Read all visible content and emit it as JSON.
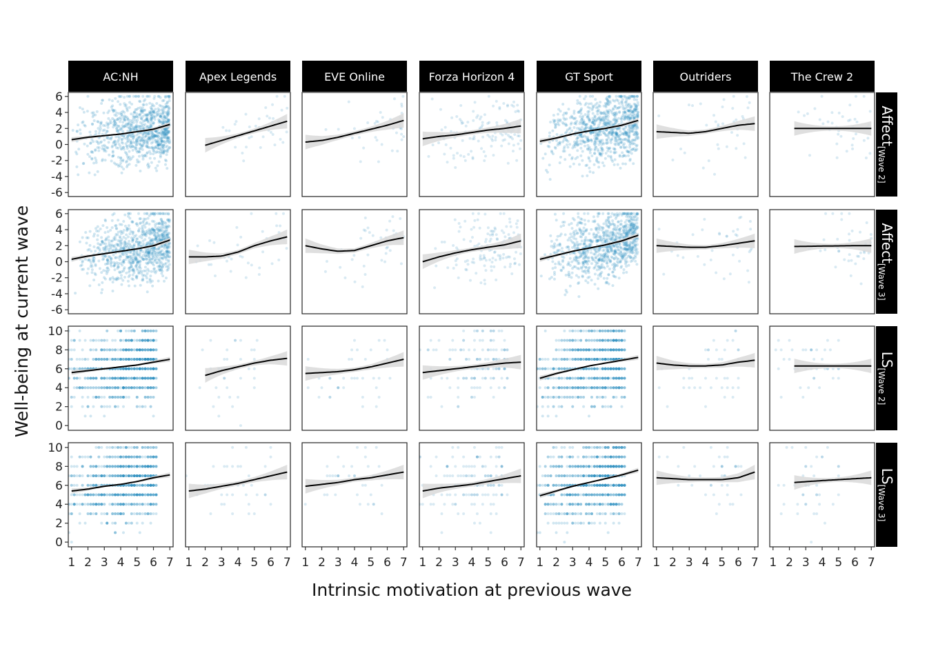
{
  "chart_data": {
    "type": "scatter",
    "xlabel": "Intrinsic motivation at previous wave",
    "ylabel": "Well-being at current wave",
    "columns": [
      "AC:NH",
      "Apex Legends",
      "EVE Online",
      "Forza Horizon 4",
      "GT Sport",
      "Outriders",
      "The Crew 2"
    ],
    "rows": [
      {
        "main": "Affect",
        "sub": "[Wave 2]",
        "ylim": [
          -6.5,
          6.5
        ],
        "yticks": [
          -6,
          -4,
          -2,
          0,
          2,
          4,
          6
        ],
        "discrete": false
      },
      {
        "main": "Affect",
        "sub": "[Wave 3]",
        "ylim": [
          -6.5,
          6.5
        ],
        "yticks": [
          -6,
          -4,
          -2,
          0,
          2,
          4,
          6
        ],
        "discrete": false
      },
      {
        "main": "LS",
        "sub": "[Wave 2]",
        "ylim": [
          -0.5,
          10.5
        ],
        "yticks": [
          0,
          2,
          4,
          6,
          8,
          10
        ],
        "discrete": true
      },
      {
        "main": "LS",
        "sub": "[Wave 3]",
        "ylim": [
          -0.5,
          10.5
        ],
        "yticks": [
          0,
          2,
          4,
          6,
          8,
          10
        ],
        "discrete": true
      }
    ],
    "xlim": [
      0.8,
      7.2
    ],
    "xticks": [
      1,
      2,
      3,
      4,
      5,
      6,
      7
    ],
    "point_color": "#2b8cbe",
    "line_color": "#000000",
    "ribbon_color": "#d9d9d9",
    "strip_color": "#000000",
    "panels": [
      [
        {
          "density": 5,
          "xmin": 1,
          "trend": [
            [
              1,
              0.6
            ],
            [
              2,
              0.9
            ],
            [
              3,
              1.1
            ],
            [
              4,
              1.3
            ],
            [
              5,
              1.6
            ],
            [
              6,
              1.9
            ],
            [
              7,
              2.5
            ]
          ]
        },
        {
          "density": 1,
          "xmin": 2,
          "trend": [
            [
              2,
              -0.1
            ],
            [
              3,
              0.5
            ],
            [
              4,
              1.1
            ],
            [
              5,
              1.7
            ],
            [
              6,
              2.3
            ],
            [
              7,
              2.9
            ]
          ]
        },
        {
          "density": 1,
          "xmin": 1,
          "trend": [
            [
              1,
              0.3
            ],
            [
              2,
              0.5
            ],
            [
              3,
              0.9
            ],
            [
              4,
              1.4
            ],
            [
              5,
              1.9
            ],
            [
              6,
              2.4
            ],
            [
              7,
              3.0
            ]
          ]
        },
        {
          "density": 2,
          "xmin": 1,
          "trend": [
            [
              1,
              0.7
            ],
            [
              2,
              1.0
            ],
            [
              3,
              1.2
            ],
            [
              4,
              1.5
            ],
            [
              5,
              1.8
            ],
            [
              6,
              2.0
            ],
            [
              7,
              2.3
            ]
          ]
        },
        {
          "density": 5,
          "xmin": 1,
          "trend": [
            [
              1,
              0.4
            ],
            [
              2,
              0.8
            ],
            [
              3,
              1.3
            ],
            [
              4,
              1.7
            ],
            [
              5,
              2.0
            ],
            [
              6,
              2.4
            ],
            [
              7,
              3.0
            ]
          ]
        },
        {
          "density": 1,
          "xmin": 1,
          "trend": [
            [
              1,
              1.6
            ],
            [
              2,
              1.5
            ],
            [
              3,
              1.4
            ],
            [
              4,
              1.6
            ],
            [
              5,
              2.0
            ],
            [
              6,
              2.4
            ],
            [
              7,
              2.6
            ]
          ]
        },
        {
          "density": 1,
          "xmin": 2.3,
          "trend": [
            [
              2.3,
              2.0
            ],
            [
              4,
              2.0
            ],
            [
              6,
              2.0
            ],
            [
              7,
              2.0
            ]
          ]
        }
      ],
      [
        {
          "density": 5,
          "xmin": 1,
          "trend": [
            [
              1,
              0.3
            ],
            [
              2,
              0.7
            ],
            [
              3,
              1.0
            ],
            [
              4,
              1.3
            ],
            [
              5,
              1.6
            ],
            [
              6,
              2.0
            ],
            [
              7,
              2.7
            ]
          ]
        },
        {
          "density": 1,
          "xmin": 1,
          "trend": [
            [
              1,
              0.6
            ],
            [
              2,
              0.6
            ],
            [
              3,
              0.7
            ],
            [
              4,
              1.2
            ],
            [
              5,
              2.0
            ],
            [
              6,
              2.6
            ],
            [
              7,
              3.1
            ]
          ]
        },
        {
          "density": 1,
          "xmin": 1,
          "trend": [
            [
              1,
              2.0
            ],
            [
              2,
              1.6
            ],
            [
              3,
              1.3
            ],
            [
              4,
              1.4
            ],
            [
              5,
              2.0
            ],
            [
              6,
              2.6
            ],
            [
              7,
              3.0
            ]
          ]
        },
        {
          "density": 2,
          "xmin": 1,
          "trend": [
            [
              1,
              0.0
            ],
            [
              2,
              0.6
            ],
            [
              3,
              1.1
            ],
            [
              4,
              1.5
            ],
            [
              5,
              1.8
            ],
            [
              6,
              2.1
            ],
            [
              7,
              2.6
            ]
          ]
        },
        {
          "density": 5,
          "xmin": 1,
          "trend": [
            [
              1,
              0.3
            ],
            [
              2,
              0.8
            ],
            [
              3,
              1.3
            ],
            [
              4,
              1.7
            ],
            [
              5,
              2.1
            ],
            [
              6,
              2.6
            ],
            [
              7,
              3.3
            ]
          ]
        },
        {
          "density": 1,
          "xmin": 1,
          "trend": [
            [
              1,
              2.0
            ],
            [
              2,
              1.9
            ],
            [
              3,
              1.8
            ],
            [
              4,
              1.8
            ],
            [
              5,
              2.0
            ],
            [
              6,
              2.3
            ],
            [
              7,
              2.6
            ]
          ]
        },
        {
          "density": 1,
          "xmin": 2.3,
          "trend": [
            [
              2.3,
              1.9
            ],
            [
              4,
              1.95
            ],
            [
              6,
              2.0
            ],
            [
              7,
              2.0
            ]
          ]
        }
      ],
      [
        {
          "density": 5,
          "xmin": 1,
          "trend": [
            [
              1,
              5.6
            ],
            [
              2,
              5.8
            ],
            [
              3,
              6.0
            ],
            [
              4,
              6.2
            ],
            [
              5,
              6.4
            ],
            [
              6,
              6.7
            ],
            [
              7,
              7.0
            ]
          ]
        },
        {
          "density": 1,
          "xmin": 2,
          "trend": [
            [
              2,
              5.3
            ],
            [
              3,
              5.8
            ],
            [
              4,
              6.2
            ],
            [
              5,
              6.6
            ],
            [
              6,
              6.9
            ],
            [
              7,
              7.1
            ]
          ]
        },
        {
          "density": 1,
          "xmin": 1,
          "trend": [
            [
              1,
              5.5
            ],
            [
              2,
              5.6
            ],
            [
              3,
              5.7
            ],
            [
              4,
              5.9
            ],
            [
              5,
              6.2
            ],
            [
              6,
              6.6
            ],
            [
              7,
              7.0
            ]
          ]
        },
        {
          "density": 2,
          "xmin": 1,
          "trend": [
            [
              1,
              5.6
            ],
            [
              2,
              5.8
            ],
            [
              3,
              6.0
            ],
            [
              4,
              6.2
            ],
            [
              5,
              6.4
            ],
            [
              6,
              6.6
            ],
            [
              7,
              6.7
            ]
          ]
        },
        {
          "density": 5,
          "xmin": 1,
          "trend": [
            [
              1,
              5.0
            ],
            [
              2,
              5.5
            ],
            [
              3,
              5.9
            ],
            [
              4,
              6.3
            ],
            [
              5,
              6.6
            ],
            [
              6,
              6.9
            ],
            [
              7,
              7.2
            ]
          ]
        },
        {
          "density": 1,
          "xmin": 1,
          "trend": [
            [
              1,
              6.6
            ],
            [
              2,
              6.4
            ],
            [
              3,
              6.3
            ],
            [
              4,
              6.3
            ],
            [
              5,
              6.4
            ],
            [
              6,
              6.7
            ],
            [
              7,
              6.9
            ]
          ]
        },
        {
          "density": 1,
          "xmin": 2.3,
          "trend": [
            [
              2.3,
              6.3
            ],
            [
              4,
              6.3
            ],
            [
              6,
              6.3
            ],
            [
              7,
              6.3
            ]
          ]
        }
      ],
      [
        {
          "density": 5,
          "xmin": 1,
          "trend": [
            [
              1,
              5.4
            ],
            [
              2,
              5.6
            ],
            [
              3,
              5.9
            ],
            [
              4,
              6.1
            ],
            [
              5,
              6.4
            ],
            [
              6,
              6.8
            ],
            [
              7,
              7.1
            ]
          ]
        },
        {
          "density": 1,
          "xmin": 1,
          "trend": [
            [
              1,
              5.4
            ],
            [
              2,
              5.6
            ],
            [
              3,
              5.9
            ],
            [
              4,
              6.2
            ],
            [
              5,
              6.6
            ],
            [
              6,
              7.0
            ],
            [
              7,
              7.4
            ]
          ]
        },
        {
          "density": 1,
          "xmin": 1,
          "trend": [
            [
              1,
              5.9
            ],
            [
              2,
              6.1
            ],
            [
              3,
              6.3
            ],
            [
              4,
              6.6
            ],
            [
              5,
              6.8
            ],
            [
              6,
              7.1
            ],
            [
              7,
              7.4
            ]
          ]
        },
        {
          "density": 2,
          "xmin": 1,
          "trend": [
            [
              1,
              5.4
            ],
            [
              2,
              5.7
            ],
            [
              3,
              5.9
            ],
            [
              4,
              6.1
            ],
            [
              5,
              6.4
            ],
            [
              6,
              6.7
            ],
            [
              7,
              7.0
            ]
          ]
        },
        {
          "density": 5,
          "xmin": 1,
          "trend": [
            [
              1,
              4.9
            ],
            [
              2,
              5.4
            ],
            [
              3,
              5.9
            ],
            [
              4,
              6.3
            ],
            [
              5,
              6.7
            ],
            [
              6,
              7.1
            ],
            [
              7,
              7.6
            ]
          ]
        },
        {
          "density": 1,
          "xmin": 1,
          "trend": [
            [
              1,
              6.8
            ],
            [
              2,
              6.7
            ],
            [
              3,
              6.6
            ],
            [
              4,
              6.6
            ],
            [
              5,
              6.6
            ],
            [
              6,
              6.8
            ],
            [
              7,
              7.4
            ]
          ]
        },
        {
          "density": 1,
          "xmin": 2.3,
          "trend": [
            [
              2.3,
              6.3
            ],
            [
              4,
              6.5
            ],
            [
              6,
              6.7
            ],
            [
              7,
              6.8
            ]
          ]
        }
      ]
    ]
  }
}
